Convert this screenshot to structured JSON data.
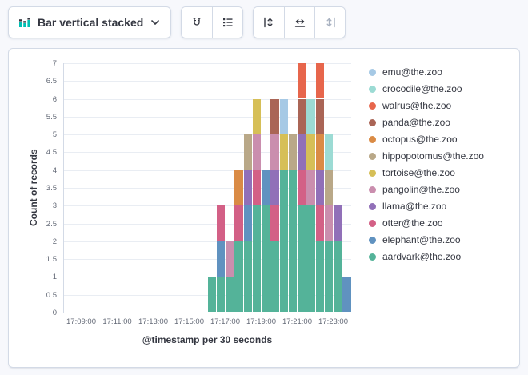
{
  "toolbar": {
    "chart_type_label": "Bar vertical stacked",
    "icons": {
      "chart_type": "bar-stacked-icon",
      "dropdown": "chevron-down-icon",
      "group1": [
        "magnet-icon",
        "legend-list-icon"
      ],
      "group2": [
        "left-axis-icon",
        "bottom-axis-icon",
        "right-axis-icon"
      ]
    }
  },
  "chart_data": {
    "type": "bar",
    "stacked": true,
    "title": "",
    "xlabel": "@timestamp per 30 seconds",
    "ylabel": "Count of records",
    "ylim": [
      0,
      7
    ],
    "ytick_step": 0.5,
    "grid": true,
    "legend_position": "right",
    "x_domain": [
      "17:08:00",
      "17:24:00"
    ],
    "xticks": [
      "17:09:00",
      "17:11:00",
      "17:13:00",
      "17:15:00",
      "17:17:00",
      "17:19:00",
      "17:21:00",
      "17:23:00"
    ],
    "categories": [
      "17:16:00",
      "17:16:30",
      "17:17:00",
      "17:17:30",
      "17:18:00",
      "17:18:30",
      "17:19:00",
      "17:19:30",
      "17:20:00",
      "17:20:30",
      "17:21:00",
      "17:21:30",
      "17:22:00",
      "17:22:30",
      "17:23:00",
      "17:23:30"
    ],
    "series": [
      {
        "name": "emu@the.zoo",
        "color": "#A6C9E5",
        "values": [
          0,
          0,
          0,
          0,
          0,
          0,
          0,
          0,
          1,
          0,
          0,
          0,
          0,
          0,
          0,
          0
        ]
      },
      {
        "name": "crocodile@the.zoo",
        "color": "#9CDBD4",
        "values": [
          0,
          0,
          0,
          0,
          0,
          0,
          0,
          0,
          0,
          0,
          0,
          1,
          0,
          1,
          0,
          0
        ]
      },
      {
        "name": "walrus@the.zoo",
        "color": "#E7664C",
        "values": [
          0,
          0,
          0,
          0,
          0,
          0,
          0,
          0,
          0,
          0,
          1,
          0,
          1,
          0,
          0,
          0
        ]
      },
      {
        "name": "panda@the.zoo",
        "color": "#AA6556",
        "values": [
          0,
          0,
          0,
          0,
          0,
          0,
          0,
          1,
          0,
          0,
          1,
          0,
          1,
          0,
          0,
          0
        ]
      },
      {
        "name": "octopus@the.zoo",
        "color": "#DA8B45",
        "values": [
          0,
          0,
          0,
          1,
          0,
          0,
          0,
          0,
          0,
          0,
          0,
          0,
          1,
          0,
          0,
          0
        ]
      },
      {
        "name": "hippopotomus@the.zoo",
        "color": "#B9A888",
        "values": [
          0,
          0,
          0,
          0,
          1,
          0,
          0,
          0,
          0,
          1,
          0,
          0,
          0,
          1,
          0,
          0
        ]
      },
      {
        "name": "tortoise@the.zoo",
        "color": "#D6BF57",
        "values": [
          0,
          0,
          0,
          0,
          0,
          1,
          0,
          0,
          1,
          0,
          0,
          1,
          0,
          0,
          0,
          0
        ]
      },
      {
        "name": "pangolin@the.zoo",
        "color": "#CA8EAE",
        "values": [
          0,
          0,
          1,
          0,
          0,
          1,
          0,
          1,
          0,
          0,
          0,
          1,
          0,
          1,
          0,
          0
        ]
      },
      {
        "name": "llama@the.zoo",
        "color": "#9170B8",
        "values": [
          0,
          0,
          0,
          0,
          1,
          0,
          0,
          1,
          0,
          0,
          1,
          0,
          1,
          0,
          1,
          0
        ]
      },
      {
        "name": "otter@the.zoo",
        "color": "#D36086",
        "values": [
          0,
          1,
          0,
          1,
          0,
          1,
          0,
          1,
          0,
          0,
          1,
          0,
          1,
          0,
          0,
          0
        ]
      },
      {
        "name": "elephant@the.zoo",
        "color": "#6092C0",
        "values": [
          0,
          1,
          0,
          0,
          1,
          0,
          1,
          0,
          0,
          0,
          0,
          0,
          0,
          0,
          0,
          1
        ]
      },
      {
        "name": "aardvark@the.zoo",
        "color": "#54B399",
        "values": [
          1,
          1,
          1,
          2,
          2,
          3,
          3,
          2,
          4,
          4,
          3,
          3,
          2,
          2,
          2,
          0
        ]
      }
    ]
  }
}
